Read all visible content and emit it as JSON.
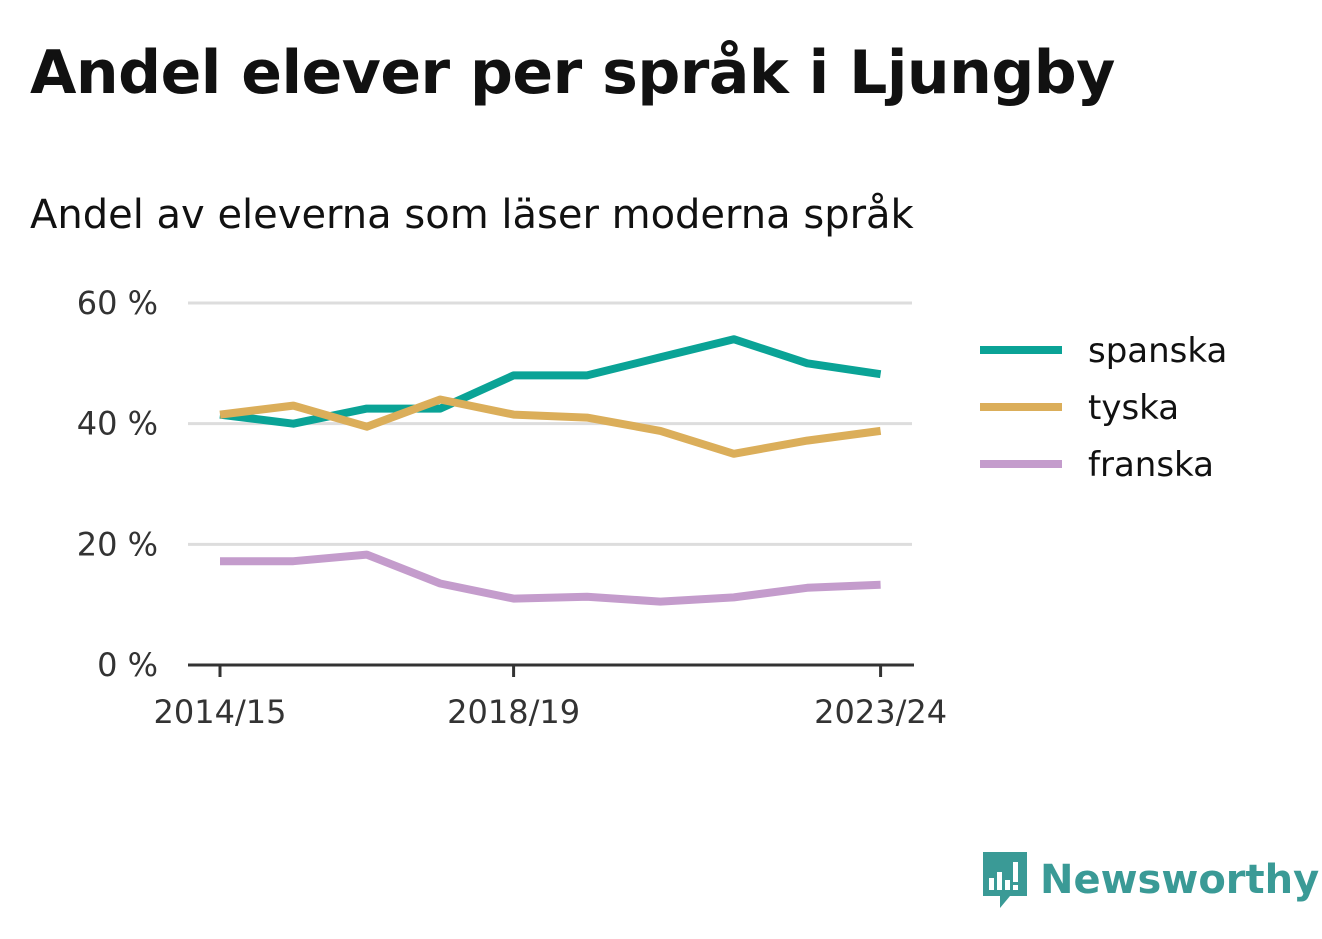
{
  "title": "Andel elever per språk i Ljungby",
  "subtitle": "Andel av eleverna som läser moderna språk",
  "brand": {
    "name": "Newsworthy",
    "icon": "newsworthy-chart-icon",
    "color": "#3a9a96"
  },
  "chart_data": {
    "type": "line",
    "x": [
      "2014/15",
      "2015/16",
      "2016/17",
      "2017/18",
      "2018/19",
      "2019/20",
      "2020/21",
      "2021/22",
      "2022/23",
      "2023/24"
    ],
    "x_tick_labels": [
      "2014/15",
      "2018/19",
      "2023/24"
    ],
    "y_ticks": [
      0,
      20,
      40,
      60
    ],
    "y_tick_labels": [
      "0 %",
      "20 %",
      "40 %",
      "60 %"
    ],
    "ylim": [
      0,
      60
    ],
    "ylabel": "",
    "xlabel": "",
    "grid": true,
    "legend_position": "right",
    "series": [
      {
        "name": "spanska",
        "color": "#0aa396",
        "values": [
          41.5,
          40,
          42.5,
          42.5,
          48,
          48,
          51,
          54,
          50,
          48.2
        ]
      },
      {
        "name": "tyska",
        "color": "#dbae5a",
        "values": [
          41.5,
          43,
          39.5,
          44,
          41.5,
          41,
          38.8,
          35,
          37.2,
          38.8
        ]
      },
      {
        "name": "franska",
        "color": "#c49ccc",
        "values": [
          17.2,
          17.2,
          18.3,
          13.5,
          11,
          11.3,
          10.5,
          11.2,
          12.8,
          13.3
        ]
      }
    ]
  }
}
